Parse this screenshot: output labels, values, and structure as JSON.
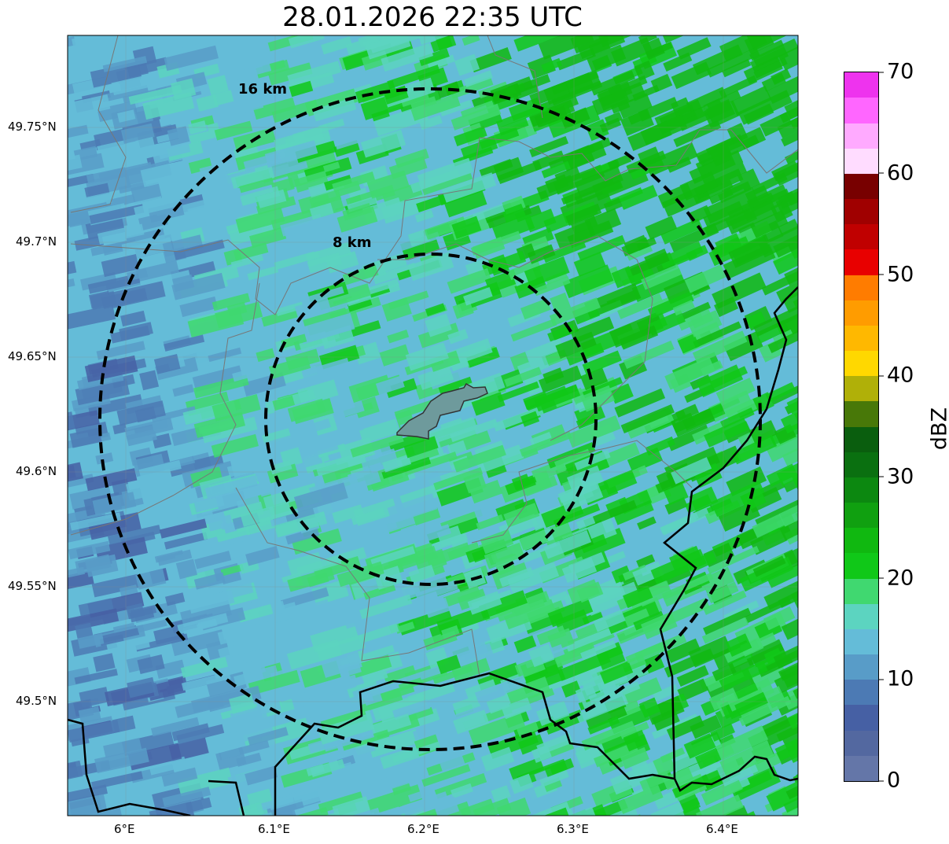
{
  "title": "28.01.2026 22:35 UTC",
  "map": {
    "lon_ticks": [
      "6°E",
      "6.1°E",
      "6.2°E",
      "6.3°E",
      "6.4°E"
    ],
    "lat_ticks": [
      "49.75°N",
      "49.7°N",
      "49.65°N",
      "49.6°N",
      "49.55°N",
      "49.5°N"
    ],
    "range_rings": [
      {
        "label": "8 km"
      },
      {
        "label": "16 km"
      }
    ]
  },
  "colorbar": {
    "label": "dBZ",
    "ticks": [
      "0",
      "10",
      "20",
      "30",
      "40",
      "50",
      "60",
      "70"
    ],
    "colors": [
      "#6476a8",
      "#5368a0",
      "#4660a4",
      "#4c7ab4",
      "#589cc8",
      "#64bcd8",
      "#5cd4c0",
      "#40d870",
      "#10c818",
      "#10b810",
      "#10a010",
      "#0c8810",
      "#0a7010",
      "#0a5e0e",
      "#487808",
      "#b0b008",
      "#ffd800",
      "#ffb800",
      "#ff9c00",
      "#ff7c00",
      "#e80000",
      "#c00000",
      "#a00000",
      "#780000",
      "#ffdcff",
      "#ffaaff",
      "#ff66ff",
      "#ee33ee"
    ]
  }
}
